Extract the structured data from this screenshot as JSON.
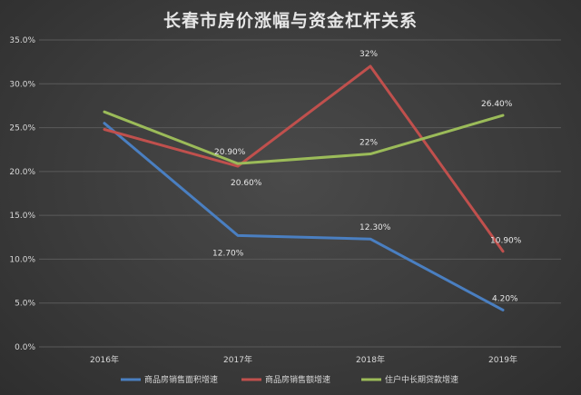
{
  "chart_data": {
    "type": "line",
    "title": "长春市房价涨幅与资金杠杆关系",
    "categories": [
      "2016年",
      "2017年",
      "2018年",
      "2019年"
    ],
    "ylim": [
      0,
      35
    ],
    "yticks": [
      "0.0%",
      "5.0%",
      "10.0%",
      "15.0%",
      "20.0%",
      "25.0%",
      "30.0%",
      "35.0%"
    ],
    "grid": true,
    "legend_position": "bottom",
    "series": [
      {
        "name": "商品房销售面积增速",
        "color": "#4a7fc1",
        "values": [
          25.5,
          12.7,
          12.3,
          4.2
        ],
        "labels": [
          "",
          "12.70%",
          "12.30%",
          "4.20%"
        ]
      },
      {
        "name": "商品房销售额增速",
        "color": "#c0504d",
        "values": [
          24.8,
          20.6,
          32.0,
          10.9
        ],
        "labels": [
          "",
          "20.60%",
          "32%",
          "10.90%"
        ]
      },
      {
        "name": "住户中长期贷款增速",
        "color": "#9bbb59",
        "values": [
          26.8,
          20.9,
          22.0,
          26.4
        ],
        "labels": [
          "",
          "20.90%",
          "22%",
          "26.40%"
        ]
      }
    ]
  }
}
